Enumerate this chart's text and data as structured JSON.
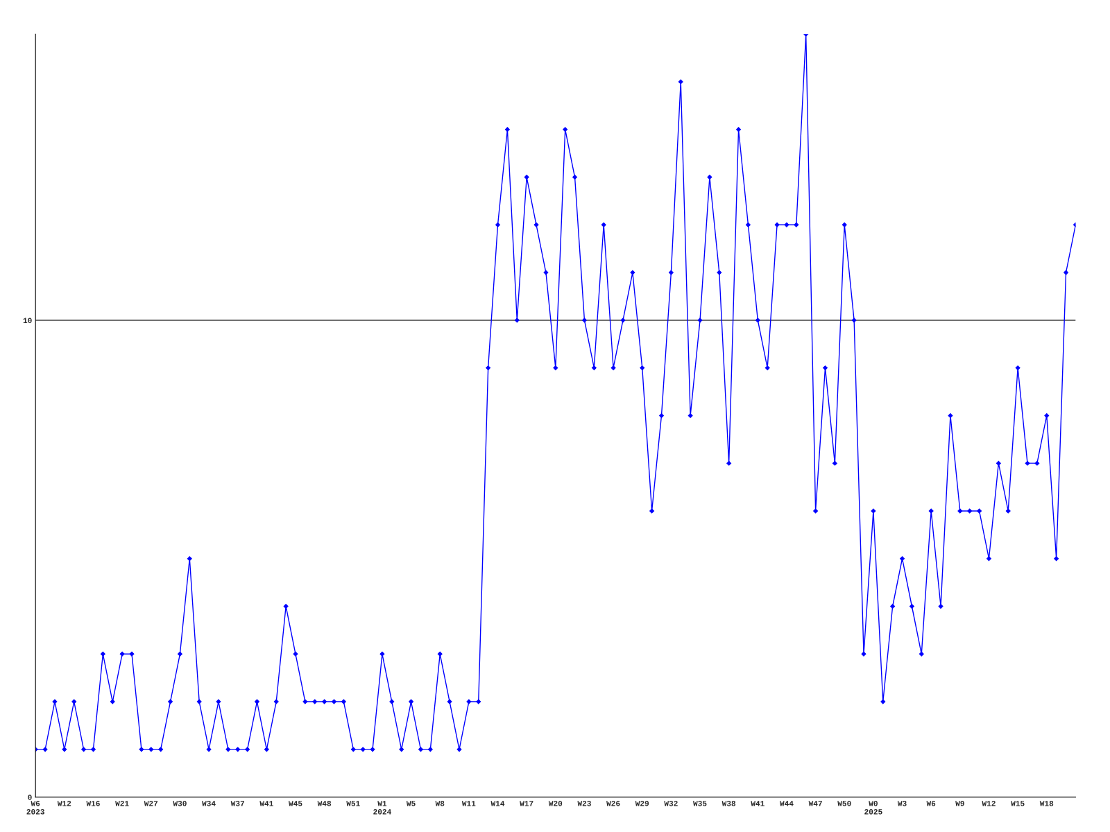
{
  "chart_data": {
    "type": "line",
    "categories": [
      "W6\n2023",
      null,
      null,
      "W12",
      null,
      null,
      "W16",
      null,
      null,
      "W21",
      null,
      null,
      "W27",
      null,
      null,
      "W30",
      null,
      null,
      "W34",
      null,
      null,
      "W37",
      null,
      null,
      "W41",
      null,
      null,
      "W45",
      null,
      null,
      "W48",
      null,
      null,
      "W51",
      null,
      null,
      "W1\n2024",
      null,
      null,
      "W5",
      null,
      null,
      "W8",
      null,
      null,
      "W11",
      null,
      null,
      "W14",
      null,
      null,
      "W17",
      null,
      null,
      "W20",
      null,
      null,
      "W23",
      null,
      null,
      "W26",
      null,
      null,
      "W29",
      null,
      null,
      "W32",
      null,
      null,
      "W35",
      null,
      null,
      "W38",
      null,
      null,
      "W41",
      null,
      null,
      "W44",
      null,
      null,
      "W47",
      null,
      null,
      "W50",
      null,
      null,
      "W0\n2025",
      null,
      null,
      "W3",
      null,
      null,
      "W6",
      null,
      null,
      "W9",
      null,
      null,
      "W12",
      null,
      null,
      "W15",
      null,
      null,
      "W18",
      null,
      null,
      null
    ],
    "series": [
      {
        "color": "#0000ff",
        "values": [
          1,
          1,
          2,
          1,
          2,
          1,
          1,
          3,
          2,
          3,
          3,
          1,
          1,
          1,
          2,
          3,
          5,
          2,
          1,
          2,
          1,
          1,
          1,
          2,
          1,
          2,
          4,
          3,
          2,
          2,
          2,
          2,
          2,
          1,
          1,
          1,
          3,
          2,
          1,
          2,
          1,
          1,
          3,
          2,
          1,
          2,
          2,
          9,
          12,
          14,
          10,
          13,
          12,
          11,
          9,
          14,
          13,
          10,
          9,
          12,
          9,
          10,
          11,
          9,
          6,
          8,
          11,
          15,
          8,
          10,
          13,
          11,
          7,
          14,
          12,
          10,
          9,
          12,
          12,
          12,
          16,
          6,
          9,
          7,
          12,
          10,
          3,
          6,
          2,
          4,
          5,
          4,
          3,
          6,
          4,
          8,
          6,
          6,
          6,
          5,
          7,
          6,
          9,
          7,
          7,
          8,
          5,
          11,
          12
        ]
      }
    ],
    "ylim": [
      0,
      16
    ],
    "yticks": [
      0,
      10
    ],
    "grid": "y",
    "marker": "diamond",
    "line_style": "solid"
  }
}
